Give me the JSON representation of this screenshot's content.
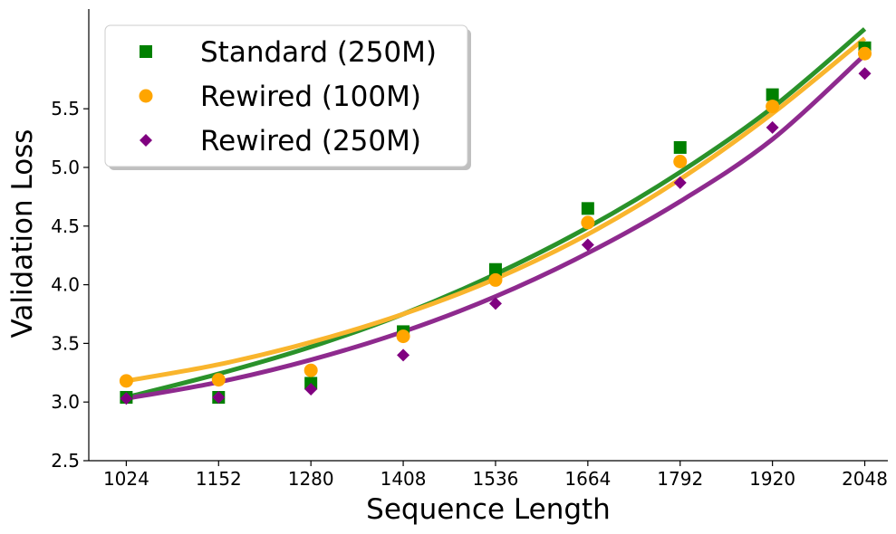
{
  "chart_data": {
    "type": "scatter",
    "title": "",
    "xlabel": "Sequence Length",
    "ylabel": "Validation Loss",
    "x": [
      1024,
      1152,
      1280,
      1408,
      1536,
      1664,
      1792,
      1920,
      2048
    ],
    "x_tick_labels": [
      "1024",
      "1152",
      "1280",
      "1408",
      "1536",
      "1664",
      "1792",
      "1920",
      "2048"
    ],
    "xlim": [
      972,
      2080
    ],
    "ylim": [
      2.5,
      6.35
    ],
    "y_ticks": [
      2.5,
      3.0,
      3.5,
      4.0,
      4.5,
      5.0,
      5.5
    ],
    "y_tick_labels": [
      "2.5",
      "3.0",
      "3.5",
      "4.0",
      "4.5",
      "5.0",
      "5.5"
    ],
    "grid": false,
    "legend_position": "top-left",
    "series": [
      {
        "name": "Standard (250M)",
        "marker": "square",
        "color": "#008000",
        "line_color": "#2a922a",
        "values": [
          3.04,
          3.04,
          3.16,
          3.6,
          4.13,
          4.65,
          5.17,
          5.62,
          6.02
        ],
        "fit": [
          3.04,
          3.24,
          3.47,
          3.75,
          4.09,
          4.49,
          4.96,
          5.51,
          6.18
        ]
      },
      {
        "name": "Rewired (100M)",
        "marker": "circle",
        "color": "#ffa500",
        "line_color": "#f9b52d",
        "values": [
          3.18,
          3.19,
          3.27,
          3.56,
          4.04,
          4.53,
          5.05,
          5.52,
          5.97
        ],
        "fit": [
          3.18,
          3.32,
          3.51,
          3.75,
          4.05,
          4.43,
          4.9,
          5.46,
          6.1
        ]
      },
      {
        "name": "Rewired (250M)",
        "marker": "diamond",
        "color": "#800080",
        "line_color": "#8e2a8e",
        "values": [
          3.03,
          3.04,
          3.11,
          3.4,
          3.84,
          4.34,
          4.87,
          5.34,
          5.8
        ],
        "fit": [
          3.03,
          3.17,
          3.36,
          3.6,
          3.9,
          4.27,
          4.71,
          5.24,
          5.96
        ]
      }
    ]
  }
}
